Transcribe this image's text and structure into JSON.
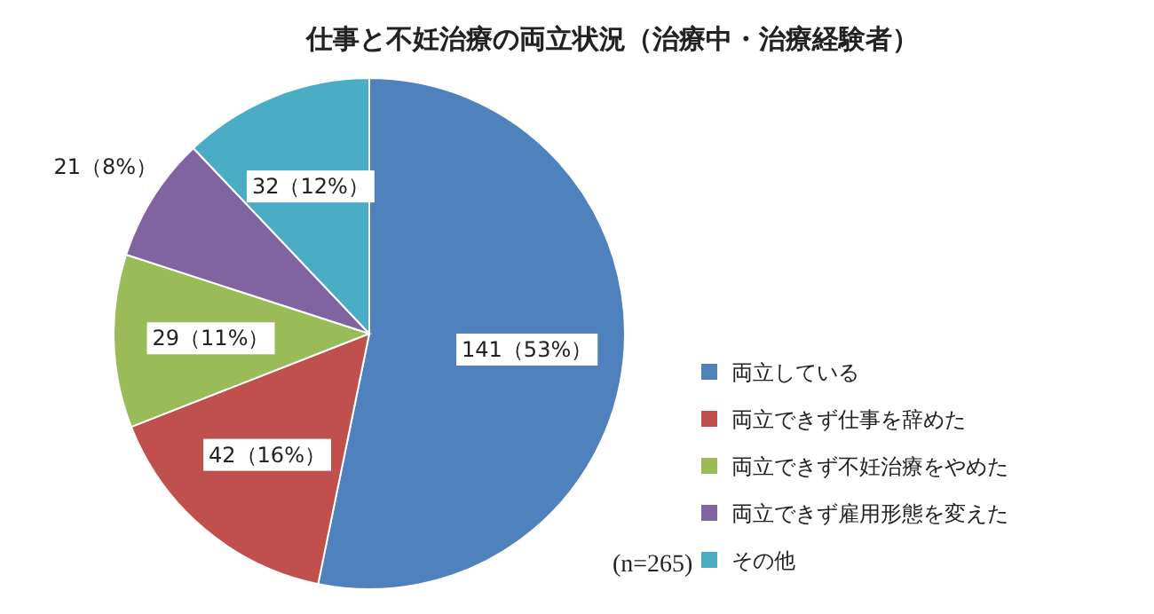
{
  "chart_data": {
    "type": "pie",
    "title": "仕事と不妊治療の両立状況（治療中・治療経験者）",
    "categories": [
      "両立している",
      "両立できず仕事を辞めた",
      "両立できず不妊治療をやめた",
      "両立できず雇用形態を変えた",
      "その他"
    ],
    "values": [
      141,
      42,
      29,
      21,
      32
    ],
    "colors": [
      "#4f81bd",
      "#c0504d",
      "#9bbb59",
      "#8064a2",
      "#4bacc6"
    ],
    "value_labels": [
      "141（53%）",
      "42（16%）",
      "29（11%）",
      "21（8%）",
      "32（12%）"
    ],
    "legend": "right",
    "annotations": [
      "(n=265)"
    ]
  }
}
